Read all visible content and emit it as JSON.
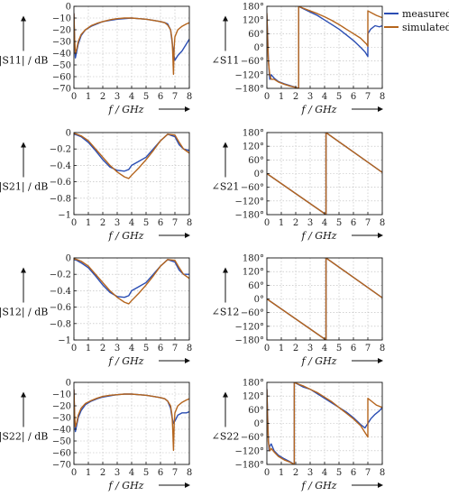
{
  "legend": {
    "position": "top-right",
    "entries": [
      {
        "name": "measured",
        "color": "#2a4db3"
      },
      {
        "name": "simulated",
        "color": "#b5651d"
      }
    ]
  },
  "chart_data": [
    {
      "id": "s11-mag",
      "type": "line",
      "xlabel": "f / GHz",
      "ylabel": "|S11| / dB",
      "xlim": [
        0,
        8
      ],
      "ylim": [
        -70,
        0
      ],
      "xticks": [
        0,
        1,
        2,
        3,
        4,
        5,
        6,
        7,
        8
      ],
      "yticks": [
        0,
        -10,
        -20,
        -30,
        -40,
        -50,
        -60,
        -70
      ],
      "ytick_labels": [
        "0",
        "−10",
        "−20",
        "−30",
        "−40",
        "−50",
        "−60",
        "−70"
      ],
      "grid": true,
      "series": [
        {
          "name": "measured",
          "color": "#2a4db3",
          "x": [
            0,
            0.05,
            0.1,
            0.2,
            0.3,
            0.5,
            0.8,
            1.2,
            1.6,
            2.0,
            2.5,
            3.0,
            3.5,
            4.0,
            4.5,
            5.0,
            5.5,
            6.0,
            6.3,
            6.5,
            6.7,
            6.8,
            6.9,
            7.0,
            7.2,
            7.5,
            7.8,
            8.0
          ],
          "y": [
            -6,
            -30,
            -44,
            -38,
            -32,
            -25,
            -20,
            -17,
            -15,
            -13,
            -12,
            -11,
            -10.5,
            -10,
            -10.5,
            -11,
            -12,
            -13,
            -14,
            -15,
            -20,
            -30,
            -40,
            -46,
            -42,
            -38,
            -32,
            -28
          ]
        },
        {
          "name": "simulated",
          "color": "#b5651d",
          "x": [
            0,
            0.05,
            0.1,
            0.2,
            0.3,
            0.5,
            0.8,
            1.2,
            1.6,
            2.0,
            2.5,
            3.0,
            3.5,
            4.0,
            4.5,
            5.0,
            5.5,
            6.0,
            6.3,
            6.5,
            6.7,
            6.8,
            6.85,
            6.9,
            6.95,
            7.0,
            7.2,
            7.5,
            7.8,
            8.0
          ],
          "y": [
            -6,
            -28,
            -40,
            -36,
            -30,
            -24,
            -20,
            -16.5,
            -14.5,
            -13,
            -11.5,
            -10.5,
            -10,
            -10,
            -10.5,
            -11,
            -12,
            -13,
            -14,
            -16,
            -20,
            -28,
            -40,
            -58,
            -35,
            -26,
            -20,
            -17,
            -15,
            -14
          ]
        }
      ]
    },
    {
      "id": "s11-phase",
      "type": "line",
      "xlabel": "f / GHz",
      "ylabel": "∠S11",
      "xlim": [
        0,
        8
      ],
      "ylim": [
        -180,
        180
      ],
      "xticks": [
        0,
        1,
        2,
        3,
        4,
        5,
        6,
        7,
        8
      ],
      "yticks": [
        180,
        120,
        60,
        0,
        -60,
        -120,
        -180
      ],
      "ytick_labels": [
        "180°",
        "120°",
        "60°",
        "0°",
        "−60°",
        "−120°",
        "−180°"
      ],
      "grid": true,
      "series": [
        {
          "name": "measured",
          "color": "#2a4db3",
          "x": [
            0,
            0.05,
            0.1,
            0.15,
            0.2,
            0.3,
            0.5,
            0.8,
            1.2,
            1.6,
            2.0,
            2.2,
            2.2,
            2.5,
            3.0,
            3.5,
            4.0,
            4.5,
            5.0,
            5.5,
            6.0,
            6.5,
            6.8,
            7.0,
            7.0,
            7.2,
            7.5,
            7.8,
            8.0
          ],
          "y": [
            140,
            60,
            -40,
            -100,
            -140,
            -120,
            -135,
            -150,
            -160,
            -168,
            -175,
            -180,
            180,
            170,
            155,
            140,
            120,
            100,
            80,
            55,
            30,
            0,
            -20,
            -40,
            60,
            80,
            95,
            90,
            95
          ]
        },
        {
          "name": "simulated",
          "color": "#b5651d",
          "x": [
            0,
            0.05,
            0.1,
            0.2,
            0.3,
            0.5,
            0.8,
            1.2,
            1.6,
            2.0,
            2.2,
            2.2,
            2.5,
            3.0,
            3.5,
            4.0,
            4.5,
            5.0,
            5.5,
            6.0,
            6.5,
            6.9,
            7.0,
            7.0,
            7.3,
            7.6,
            8.0
          ],
          "y": [
            150,
            40,
            -60,
            -120,
            -140,
            -140,
            -152,
            -162,
            -170,
            -176,
            -180,
            180,
            172,
            160,
            148,
            134,
            118,
            100,
            80,
            60,
            40,
            15,
            5,
            160,
            150,
            140,
            130
          ]
        }
      ]
    },
    {
      "id": "s21-mag",
      "type": "line",
      "xlabel": "f / GHz",
      "ylabel": "|S21| / dB",
      "xlim": [
        0,
        8
      ],
      "ylim": [
        -1,
        0
      ],
      "xticks": [
        0,
        1,
        2,
        3,
        4,
        5,
        6,
        7,
        8
      ],
      "yticks": [
        0,
        -0.2,
        -0.4,
        -0.6,
        -0.8,
        -1
      ],
      "ytick_labels": [
        "0",
        "−0.2",
        "−0.4",
        "−0.6",
        "−0.8",
        "−1"
      ],
      "grid": true,
      "series": [
        {
          "name": "measured",
          "color": "#2a4db3",
          "x": [
            0,
            0.2,
            0.5,
            1.0,
            1.5,
            2.0,
            2.5,
            3.0,
            3.5,
            3.8,
            4.0,
            4.5,
            5.0,
            5.5,
            6.0,
            6.5,
            7.0,
            7.3,
            7.6,
            8.0
          ],
          "y": [
            -0.02,
            -0.03,
            -0.05,
            -0.12,
            -0.22,
            -0.33,
            -0.42,
            -0.46,
            -0.47,
            -0.45,
            -0.4,
            -0.35,
            -0.3,
            -0.2,
            -0.1,
            -0.02,
            -0.05,
            -0.15,
            -0.2,
            -0.22
          ]
        },
        {
          "name": "simulated",
          "color": "#b5651d",
          "x": [
            0,
            0.2,
            0.5,
            1.0,
            1.5,
            2.0,
            2.5,
            3.0,
            3.5,
            3.8,
            4.0,
            4.5,
            5.0,
            5.5,
            6.0,
            6.5,
            7.0,
            7.3,
            7.6,
            8.0
          ],
          "y": [
            -0.01,
            -0.02,
            -0.04,
            -0.1,
            -0.2,
            -0.3,
            -0.4,
            -0.48,
            -0.54,
            -0.56,
            -0.52,
            -0.43,
            -0.33,
            -0.22,
            -0.1,
            -0.02,
            -0.03,
            -0.12,
            -0.2,
            -0.25
          ]
        }
      ]
    },
    {
      "id": "s21-phase",
      "type": "line",
      "xlabel": "f / GHz",
      "ylabel": "∠S21",
      "xlim": [
        0,
        8
      ],
      "ylim": [
        -180,
        180
      ],
      "xticks": [
        0,
        1,
        2,
        3,
        4,
        5,
        6,
        7,
        8
      ],
      "yticks": [
        180,
        120,
        60,
        0,
        -60,
        -120,
        -180
      ],
      "ytick_labels": [
        "180°",
        "120°",
        "60°",
        "0°",
        "−60°",
        "−120°",
        "−180°"
      ],
      "grid": true,
      "series": [
        {
          "name": "measured",
          "color": "#2a4db3",
          "x": [
            0,
            4.1,
            4.1,
            8.0
          ],
          "y": [
            0,
            -180,
            180,
            5
          ]
        },
        {
          "name": "simulated",
          "color": "#b5651d",
          "x": [
            0,
            4.1,
            4.1,
            8.0
          ],
          "y": [
            0,
            -180,
            180,
            5
          ]
        }
      ]
    },
    {
      "id": "s12-mag",
      "type": "line",
      "xlabel": "f / GHz",
      "ylabel": "|S12| / dB",
      "xlim": [
        0,
        8
      ],
      "ylim": [
        -1,
        0
      ],
      "xticks": [
        0,
        1,
        2,
        3,
        4,
        5,
        6,
        7,
        8
      ],
      "yticks": [
        0,
        -0.2,
        -0.4,
        -0.6,
        -0.8,
        -1
      ],
      "ytick_labels": [
        "0",
        "−0.2",
        "−0.4",
        "−0.6",
        "−0.8",
        "−1"
      ],
      "grid": true,
      "series": [
        {
          "name": "measured",
          "color": "#2a4db3",
          "x": [
            0,
            0.2,
            0.5,
            1.0,
            1.5,
            2.0,
            2.5,
            3.0,
            3.5,
            3.8,
            4.0,
            4.5,
            5.0,
            5.5,
            6.0,
            6.5,
            7.0,
            7.3,
            7.6,
            8.0
          ],
          "y": [
            -0.02,
            -0.03,
            -0.06,
            -0.12,
            -0.22,
            -0.33,
            -0.42,
            -0.47,
            -0.48,
            -0.46,
            -0.4,
            -0.35,
            -0.3,
            -0.2,
            -0.1,
            -0.02,
            -0.05,
            -0.15,
            -0.2,
            -0.2
          ]
        },
        {
          "name": "simulated",
          "color": "#b5651d",
          "x": [
            0,
            0.2,
            0.5,
            1.0,
            1.5,
            2.0,
            2.5,
            3.0,
            3.5,
            3.8,
            4.0,
            4.5,
            5.0,
            5.5,
            6.0,
            6.5,
            7.0,
            7.3,
            7.6,
            8.0
          ],
          "y": [
            -0.01,
            -0.02,
            -0.04,
            -0.1,
            -0.2,
            -0.3,
            -0.4,
            -0.48,
            -0.54,
            -0.56,
            -0.52,
            -0.43,
            -0.33,
            -0.22,
            -0.1,
            -0.02,
            -0.03,
            -0.12,
            -0.2,
            -0.25
          ]
        }
      ]
    },
    {
      "id": "s12-phase",
      "type": "line",
      "xlabel": "f / GHz",
      "ylabel": "∠S12",
      "xlim": [
        0,
        8
      ],
      "ylim": [
        -180,
        180
      ],
      "xticks": [
        0,
        1,
        2,
        3,
        4,
        5,
        6,
        7,
        8
      ],
      "yticks": [
        180,
        120,
        60,
        0,
        -60,
        -120,
        -180
      ],
      "ytick_labels": [
        "180°",
        "120°",
        "60°",
        "0°",
        "−60°",
        "−120°",
        "−180°"
      ],
      "grid": true,
      "series": [
        {
          "name": "measured",
          "color": "#2a4db3",
          "x": [
            0,
            4.1,
            4.1,
            8.0
          ],
          "y": [
            0,
            -180,
            180,
            5
          ]
        },
        {
          "name": "simulated",
          "color": "#b5651d",
          "x": [
            0,
            4.1,
            4.1,
            8.0
          ],
          "y": [
            0,
            -180,
            180,
            5
          ]
        }
      ]
    },
    {
      "id": "s22-mag",
      "type": "line",
      "xlabel": "f / GHz",
      "ylabel": "|S22| / dB",
      "xlim": [
        0,
        8
      ],
      "ylim": [
        -70,
        0
      ],
      "xticks": [
        0,
        1,
        2,
        3,
        4,
        5,
        6,
        7,
        8
      ],
      "yticks": [
        0,
        -10,
        -20,
        -30,
        -40,
        -50,
        -60,
        -70
      ],
      "ytick_labels": [
        "0",
        "−10",
        "−20",
        "−30",
        "−40",
        "−50",
        "−60",
        "−70"
      ],
      "grid": true,
      "series": [
        {
          "name": "measured",
          "color": "#2a4db3",
          "x": [
            0,
            0.05,
            0.1,
            0.2,
            0.3,
            0.5,
            0.8,
            1.2,
            1.6,
            2.0,
            2.5,
            3.0,
            3.5,
            4.0,
            4.5,
            5.0,
            5.5,
            6.0,
            6.3,
            6.5,
            6.7,
            6.8,
            6.9,
            7.0,
            7.2,
            7.5,
            7.8,
            8.0
          ],
          "y": [
            -6,
            -30,
            -42,
            -36,
            -30,
            -24,
            -19,
            -16,
            -14,
            -12.5,
            -11.5,
            -10.5,
            -10,
            -10,
            -10.5,
            -11,
            -12,
            -13,
            -14,
            -16,
            -22,
            -30,
            -35,
            -33,
            -28,
            -26,
            -26,
            -25
          ]
        },
        {
          "name": "simulated",
          "color": "#b5651d",
          "x": [
            0,
            0.05,
            0.1,
            0.2,
            0.3,
            0.5,
            0.8,
            1.2,
            1.6,
            2.0,
            2.5,
            3.0,
            3.5,
            4.0,
            4.5,
            5.0,
            5.5,
            6.0,
            6.3,
            6.5,
            6.7,
            6.8,
            6.85,
            6.9,
            6.95,
            7.0,
            7.2,
            7.5,
            7.8,
            8.0
          ],
          "y": [
            -6,
            -28,
            -38,
            -34,
            -28,
            -22,
            -18,
            -15.5,
            -13.5,
            -12,
            -11,
            -10.5,
            -10,
            -10,
            -10.5,
            -11,
            -12,
            -13,
            -14,
            -16,
            -20,
            -28,
            -40,
            -58,
            -35,
            -26,
            -20,
            -17,
            -15,
            -14
          ]
        }
      ]
    },
    {
      "id": "s22-phase",
      "type": "line",
      "xlabel": "f / GHz",
      "ylabel": "∠S22",
      "xlim": [
        0,
        8
      ],
      "ylim": [
        -180,
        180
      ],
      "xticks": [
        0,
        1,
        2,
        3,
        4,
        5,
        6,
        7,
        8
      ],
      "yticks": [
        180,
        120,
        60,
        0,
        -60,
        -120,
        -180
      ],
      "ytick_labels": [
        "180°",
        "120°",
        "60°",
        "0°",
        "−60°",
        "−120°",
        "−180°"
      ],
      "grid": true,
      "series": [
        {
          "name": "measured",
          "color": "#2a4db3",
          "x": [
            0,
            0.05,
            0.1,
            0.15,
            0.2,
            0.3,
            0.5,
            0.8,
            1.2,
            1.6,
            1.9,
            1.9,
            2.2,
            2.5,
            3.0,
            3.5,
            4.0,
            4.5,
            5.0,
            5.5,
            6.0,
            6.5,
            6.8,
            7.0,
            7.2,
            7.5,
            7.8,
            8.0
          ],
          "y": [
            150,
            40,
            -60,
            -120,
            -100,
            -90,
            -120,
            -140,
            -155,
            -168,
            -180,
            180,
            170,
            160,
            150,
            130,
            110,
            90,
            70,
            50,
            25,
            -5,
            -20,
            0,
            20,
            40,
            55,
            70
          ]
        },
        {
          "name": "simulated",
          "color": "#b5651d",
          "x": [
            0,
            0.05,
            0.1,
            0.2,
            0.3,
            0.5,
            0.8,
            1.2,
            1.6,
            1.9,
            1.9,
            2.2,
            2.5,
            3.0,
            3.5,
            4.0,
            4.5,
            5.0,
            5.5,
            6.0,
            6.5,
            6.9,
            7.0,
            7.0,
            7.3,
            7.6,
            8.0
          ],
          "y": [
            150,
            20,
            -80,
            -120,
            -110,
            -125,
            -145,
            -160,
            -170,
            -180,
            180,
            172,
            165,
            150,
            135,
            115,
            95,
            70,
            45,
            20,
            -10,
            -50,
            -60,
            110,
            95,
            80,
            70
          ]
        }
      ]
    }
  ]
}
